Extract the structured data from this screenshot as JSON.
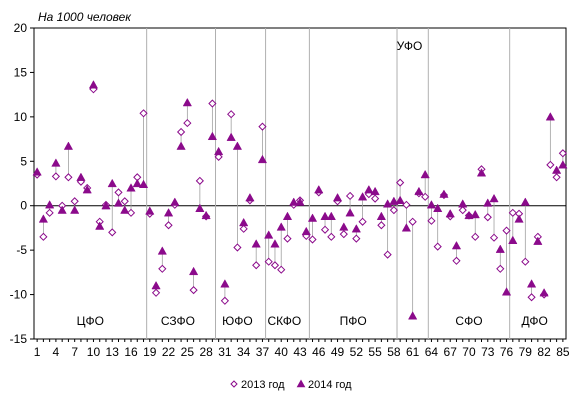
{
  "chart_data": {
    "type": "scatter",
    "unit_label": "На 1000 человек",
    "ylim": [
      -15,
      20
    ],
    "yticks": [
      -15,
      -10,
      -5,
      0,
      5,
      10,
      15,
      20
    ],
    "xlim": [
      0.5,
      85.5
    ],
    "xticks": [
      1,
      4,
      7,
      10,
      13,
      16,
      19,
      22,
      25,
      28,
      31,
      34,
      37,
      40,
      43,
      46,
      49,
      52,
      55,
      58,
      61,
      64,
      67,
      70,
      73,
      76,
      79,
      82,
      85
    ],
    "grid": false,
    "legend_position": "bottom",
    "series": [
      {
        "name": "2013 год",
        "marker": "diamond-open",
        "color": "#8B0A8B",
        "values": [
          3.5,
          -3.5,
          -0.8,
          3.3,
          0,
          3.2,
          0.5,
          2.7,
          2,
          13.1,
          -1.8,
          0.1,
          -3,
          1.5,
          0.5,
          -0.8,
          3.2,
          10.4,
          -0.9,
          -9.8,
          -7.1,
          -2.2,
          0.1,
          8.3,
          9.3,
          -9.5,
          2.8,
          -1.2,
          11.5,
          5.5,
          -10.7,
          10.3,
          -4.7,
          -2.6,
          0.6,
          -6.7,
          8.9,
          -6.3,
          -6.7,
          -7.2,
          -3.7,
          0.1,
          0.6,
          -3.4,
          -3.8,
          1.5,
          -2.7,
          -3.5,
          0.5,
          -3.2,
          1.1,
          -3.7,
          -1.8,
          1.3,
          0.8,
          -2.2,
          -5.5,
          -0.5,
          2.6,
          0.1,
          -1.8,
          1.4,
          1.0,
          -1.7,
          -4.6,
          1.2,
          -1.2,
          -6.2,
          -0.5,
          -1.1,
          -3.5,
          4.1,
          -1.3,
          -3.6,
          -7.1,
          -2.8,
          -0.8,
          -0.9,
          -6.3,
          -10.3,
          -3.5,
          -10.0,
          4.6,
          3.2,
          5.9
        ]
      },
      {
        "name": "2014 год",
        "marker": "triangle-filled",
        "color": "#8B0A8B",
        "values": [
          3.8,
          -1.5,
          0.1,
          4.8,
          -0.5,
          6.7,
          -0.5,
          3.2,
          1.8,
          13.6,
          -2.3,
          0,
          2.5,
          0.3,
          -0.5,
          2.0,
          2.5,
          2.4,
          -0.6,
          -9.0,
          -5.1,
          -0.8,
          0.4,
          6.7,
          11.6,
          -7.4,
          -0.3,
          -1.1,
          7.8,
          6.1,
          -8.8,
          7.7,
          6.7,
          -1.9,
          0.9,
          -4.3,
          5.2,
          -3.3,
          -4.3,
          -2.4,
          -1.2,
          0.4,
          0.4,
          -2.9,
          -1.4,
          1.8,
          -1.2,
          -1.2,
          0.9,
          -2.4,
          -0.8,
          -2.6,
          1.0,
          1.8,
          1.6,
          -1.2,
          0.2,
          0.5,
          0.6,
          -2.5,
          -12.4,
          1.6,
          3.5,
          0.1,
          -0.3,
          1.3,
          -0.9,
          -4.5,
          0.2,
          -1.1,
          -1.0,
          3.7,
          0.3,
          0.8,
          -4.9,
          -9.7,
          -3.9,
          -1.5,
          0.4,
          -8.8,
          -4.0,
          -9.8,
          10.0,
          4.0,
          4.6
        ]
      }
    ],
    "dividers_after": [
      18,
      29,
      37,
      44,
      58,
      63,
      76
    ],
    "regions": [
      {
        "label": "ЦФО",
        "x": 9.5,
        "y": -13
      },
      {
        "label": "СЗФО",
        "x": 23.5,
        "y": -13
      },
      {
        "label": "ЮФО",
        "x": 33,
        "y": -13
      },
      {
        "label": "СКФО",
        "x": 40.5,
        "y": -13
      },
      {
        "label": "ПФО",
        "x": 51.5,
        "y": -13
      },
      {
        "label": "УФО",
        "x": 60.5,
        "y": 18
      },
      {
        "label": "СФО",
        "x": 70,
        "y": -13
      },
      {
        "label": "ДФО",
        "x": 80.5,
        "y": -13
      }
    ]
  }
}
